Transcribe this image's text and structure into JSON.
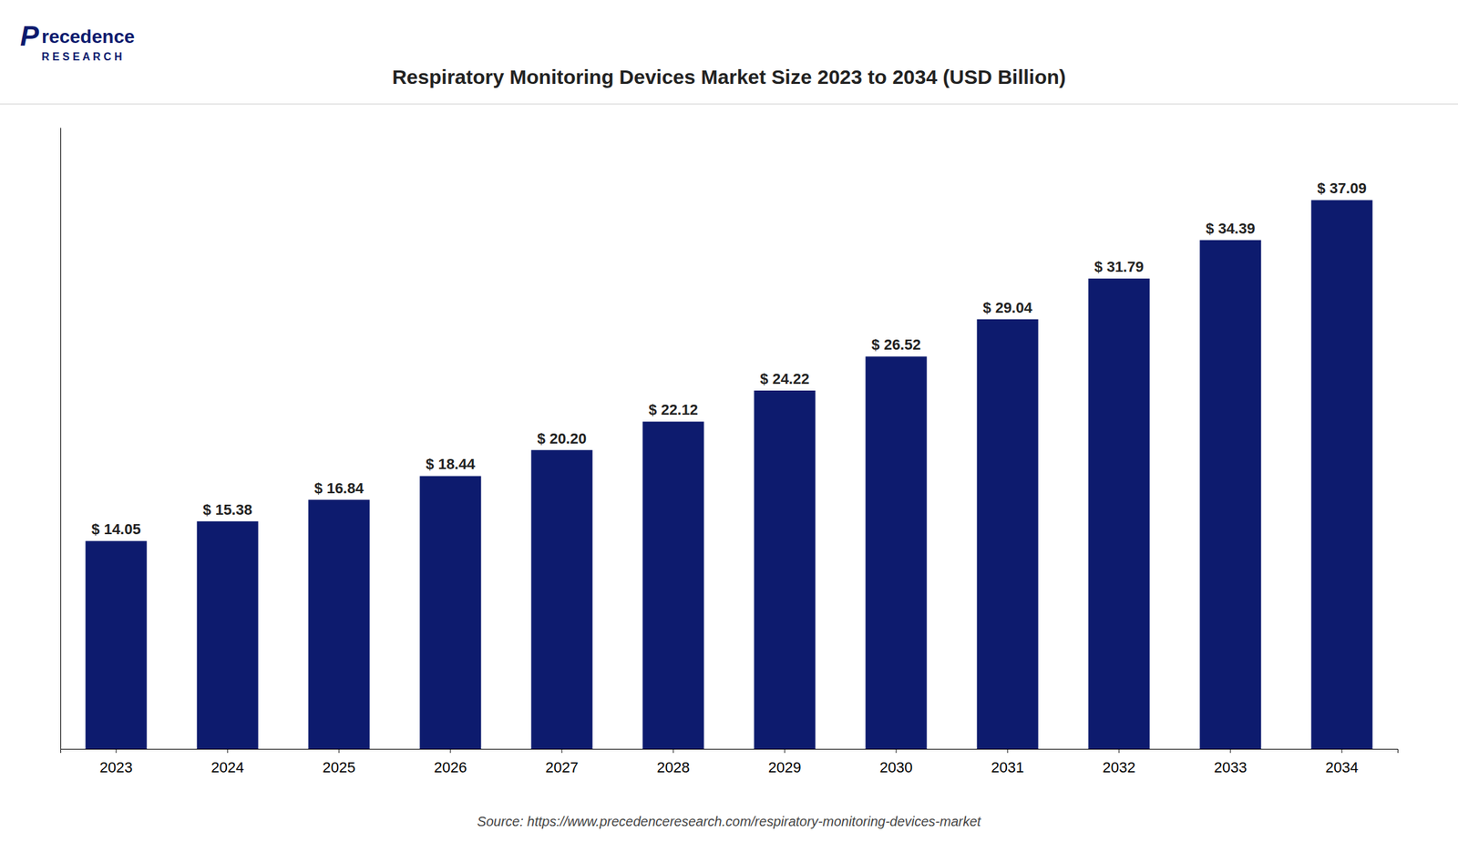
{
  "chart_data": {
    "type": "bar",
    "title": "Respiratory Monitoring Devices Market Size 2023 to 2034 (USD Billion)",
    "categories": [
      "2023",
      "2024",
      "2025",
      "2026",
      "2027",
      "2028",
      "2029",
      "2030",
      "2031",
      "2032",
      "2033",
      "2034"
    ],
    "values": [
      14.05,
      15.38,
      16.84,
      18.44,
      20.2,
      22.12,
      24.22,
      26.52,
      29.04,
      31.79,
      34.39,
      37.09
    ],
    "value_labels": [
      "$ 14.05",
      "$ 15.38",
      "$ 16.84",
      "$ 18.44",
      "$ 20.20",
      "$ 22.12",
      "$ 24.22",
      "$ 26.52",
      "$ 29.04",
      "$ 31.79",
      "$ 34.39",
      "$ 37.09"
    ],
    "color": "#0d1b6e",
    "ylim": [
      0,
      42
    ],
    "grid": false,
    "tick_labels": "x",
    "source": "Source: https://www.precedenceresearch.com/respiratory-monitoring-devices-market",
    "logo_text": [
      "P",
      "recedence",
      "R E S E A R C H"
    ]
  }
}
